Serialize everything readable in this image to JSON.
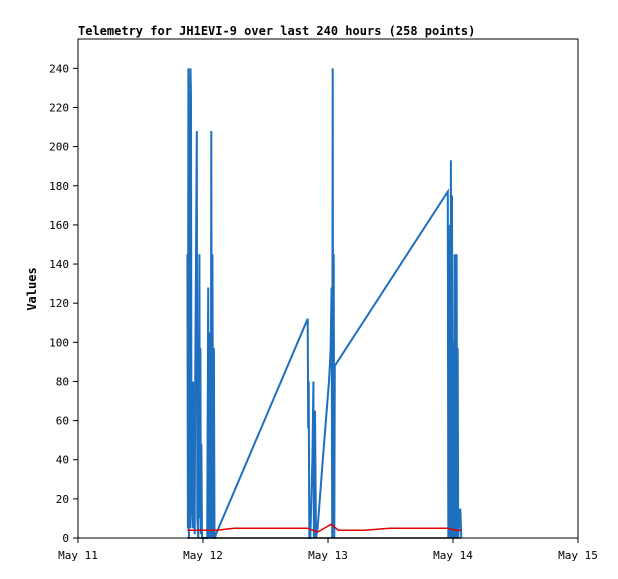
{
  "chart_data": {
    "type": "line",
    "title": "Telemetry for JH1EVI-9 over last 240 hours (258 points)",
    "xlabel": "",
    "ylabel": "Values",
    "x_unit": "hours since May 11 00:00",
    "xlim": [
      0,
      96
    ],
    "ylim": [
      0,
      255
    ],
    "x_ticks": [
      {
        "label": "May 11",
        "value": 0
      },
      {
        "label": "May 12",
        "value": 24
      },
      {
        "label": "May 13",
        "value": 48
      },
      {
        "label": "May 14",
        "value": 72
      },
      {
        "label": "May 15",
        "value": 96
      }
    ],
    "y_ticks": [
      0,
      20,
      40,
      60,
      80,
      100,
      120,
      140,
      160,
      180,
      200,
      220,
      240
    ],
    "grid": false,
    "series": [
      {
        "name": "",
        "color": "#1f6fbf",
        "points": [
          [
            21.0,
            145
          ],
          [
            21.1,
            5
          ],
          [
            21.2,
            240
          ],
          [
            21.3,
            0
          ],
          [
            21.4,
            112
          ],
          [
            21.5,
            5
          ],
          [
            21.6,
            240
          ],
          [
            21.7,
            225
          ],
          [
            21.8,
            20
          ],
          [
            22.0,
            5
          ],
          [
            22.1,
            80
          ],
          [
            22.2,
            35
          ],
          [
            22.4,
            2
          ],
          [
            22.5,
            80
          ],
          [
            22.7,
            160
          ],
          [
            22.8,
            208
          ],
          [
            22.9,
            10
          ],
          [
            23.1,
            0
          ],
          [
            23.3,
            145
          ],
          [
            23.4,
            10
          ],
          [
            23.5,
            97
          ],
          [
            23.6,
            2
          ],
          [
            23.7,
            48
          ],
          [
            23.8,
            0
          ],
          [
            24.1,
            0
          ],
          [
            24.4,
            0
          ],
          [
            24.6,
            0
          ],
          [
            24.8,
            0
          ],
          [
            25.0,
            128
          ],
          [
            25.1,
            0
          ],
          [
            25.2,
            105
          ],
          [
            25.3,
            0
          ],
          [
            25.5,
            10
          ],
          [
            25.6,
            208
          ],
          [
            25.7,
            0
          ],
          [
            25.8,
            145
          ],
          [
            26.0,
            0
          ],
          [
            26.1,
            97
          ],
          [
            26.2,
            0
          ],
          [
            26.3,
            0
          ],
          [
            26.5,
            2
          ],
          [
            44.1,
            112
          ],
          [
            44.2,
            56
          ],
          [
            44.3,
            80
          ],
          [
            44.4,
            0
          ],
          [
            44.6,
            0
          ],
          [
            45.0,
            40
          ],
          [
            45.2,
            80
          ],
          [
            45.3,
            0
          ],
          [
            45.5,
            65
          ],
          [
            45.7,
            0
          ],
          [
            46.0,
            5
          ],
          [
            47.0,
            40
          ],
          [
            48.2,
            80
          ],
          [
            48.5,
            96
          ],
          [
            48.6,
            112
          ],
          [
            48.7,
            128
          ],
          [
            48.8,
            0
          ],
          [
            48.9,
            240
          ],
          [
            49.0,
            5
          ],
          [
            49.1,
            145
          ],
          [
            49.2,
            0
          ],
          [
            49.3,
            88
          ],
          [
            71.0,
            177
          ],
          [
            71.1,
            0
          ],
          [
            71.2,
            145
          ],
          [
            71.3,
            0
          ],
          [
            71.4,
            160
          ],
          [
            71.5,
            0
          ],
          [
            71.6,
            193
          ],
          [
            71.7,
            0
          ],
          [
            71.8,
            175
          ],
          [
            71.9,
            0
          ],
          [
            72.0,
            100
          ],
          [
            72.1,
            35
          ],
          [
            72.2,
            0
          ],
          [
            72.3,
            145
          ],
          [
            72.4,
            0
          ],
          [
            72.5,
            65
          ],
          [
            72.6,
            0
          ],
          [
            72.7,
            145
          ],
          [
            72.8,
            0
          ],
          [
            72.9,
            97
          ],
          [
            73.0,
            0
          ],
          [
            73.2,
            10
          ],
          [
            73.4,
            15
          ],
          [
            73.6,
            0
          ]
        ]
      },
      {
        "name": "",
        "color": "#e00000",
        "points": [
          [
            21.0,
            4
          ],
          [
            24.0,
            4
          ],
          [
            26.5,
            4
          ],
          [
            30.0,
            5
          ],
          [
            44.0,
            5
          ],
          [
            46.0,
            3
          ],
          [
            48.6,
            7
          ],
          [
            50.0,
            4
          ],
          [
            55.0,
            4
          ],
          [
            60.0,
            5
          ],
          [
            71.0,
            5
          ],
          [
            72.5,
            4
          ],
          [
            73.6,
            4
          ]
        ]
      },
      {
        "name": "",
        "color": "#000000",
        "points": [
          [
            21.0,
            0
          ],
          [
            73.6,
            0
          ]
        ]
      }
    ]
  }
}
